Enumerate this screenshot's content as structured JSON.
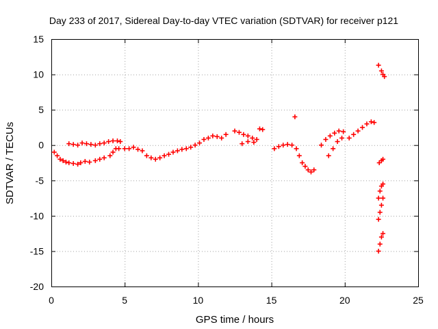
{
  "chart_data": {
    "type": "scatter",
    "title": "Day 233 of 2017, Sidereal Day-to-day VTEC variation (SDTVAR) for receiver p121",
    "xlabel": "GPS time / hours",
    "ylabel": "SDTVAR / TECUs",
    "xlim": [
      0,
      25
    ],
    "ylim": [
      -20,
      15
    ],
    "xticks": [
      "0",
      "5",
      "10",
      "15",
      "20",
      "25"
    ],
    "yticks": [
      "-20",
      "-15",
      "-10",
      "-5",
      "0",
      "5",
      "10",
      "15"
    ],
    "grid": true,
    "marker": "plus",
    "series_color": "#ff0000",
    "series": [
      {
        "name": "SDTVAR",
        "x": [
          0.2,
          0.4,
          0.6,
          0.8,
          1.0,
          1.2,
          1.5,
          1.8,
          2.0,
          2.3,
          2.6,
          3.0,
          3.3,
          3.6,
          4.0,
          4.2,
          4.4,
          4.6,
          1.2,
          1.5,
          1.8,
          2.1,
          2.4,
          2.7,
          3.0,
          3.3,
          3.6,
          3.9,
          4.2,
          4.5,
          4.7,
          5.0,
          5.3,
          5.6,
          5.9,
          6.2,
          6.5,
          6.8,
          7.1,
          7.4,
          7.7,
          8.0,
          8.3,
          8.6,
          8.9,
          9.2,
          9.5,
          9.8,
          10.1,
          10.4,
          10.7,
          11.0,
          11.3,
          11.6,
          11.9,
          12.5,
          12.8,
          13.1,
          13.4,
          13.7,
          14.0,
          14.2,
          14.4,
          13.0,
          13.4,
          13.8,
          15.2,
          15.5,
          15.8,
          16.1,
          16.4,
          16.7,
          16.9,
          17.1,
          17.3,
          17.5,
          17.7,
          17.9,
          16.6,
          18.4,
          18.7,
          19.0,
          19.3,
          19.6,
          19.9,
          18.9,
          19.2,
          19.5,
          19.8,
          20.3,
          20.6,
          20.9,
          21.2,
          21.5,
          21.8,
          22.0,
          22.3,
          22.5,
          22.6,
          22.7,
          22.35,
          22.5,
          22.6,
          22.3,
          22.4,
          22.5,
          22.6,
          22.3,
          22.4,
          22.5,
          22.6,
          22.3,
          22.4,
          22.5,
          22.6
        ],
        "y": [
          -1.0,
          -1.5,
          -2.0,
          -2.2,
          -2.4,
          -2.5,
          -2.6,
          -2.7,
          -2.5,
          -2.3,
          -2.4,
          -2.2,
          -2.0,
          -1.8,
          -1.5,
          -1.0,
          -0.5,
          -0.5,
          0.2,
          0.1,
          0.0,
          0.3,
          0.2,
          0.1,
          0.0,
          0.2,
          0.3,
          0.5,
          0.6,
          0.6,
          0.5,
          -0.5,
          -0.5,
          -0.3,
          -0.6,
          -0.8,
          -1.5,
          -1.8,
          -2.0,
          -1.8,
          -1.5,
          -1.3,
          -1.0,
          -0.8,
          -0.6,
          -0.5,
          -0.3,
          0.0,
          0.3,
          0.8,
          1.0,
          1.3,
          1.2,
          1.0,
          1.5,
          2.0,
          1.8,
          1.5,
          1.3,
          1.0,
          0.8,
          2.3,
          2.2,
          0.2,
          0.5,
          0.4,
          -0.5,
          -0.2,
          0.0,
          0.1,
          0.0,
          -0.5,
          -1.5,
          -2.5,
          -3.0,
          -3.5,
          -3.8,
          -3.5,
          4.0,
          0.0,
          0.8,
          1.3,
          1.7,
          2.0,
          1.9,
          -1.5,
          -0.5,
          0.5,
          1.0,
          1.0,
          1.5,
          2.0,
          2.5,
          3.0,
          3.3,
          3.2,
          11.3,
          10.5,
          10.0,
          9.7,
          -2.5,
          -2.2,
          -2.0,
          -7.5,
          -6.5,
          -5.8,
          -5.5,
          -10.5,
          -9.5,
          -8.5,
          -7.5,
          -15.0,
          -14.0,
          -13.0,
          -12.5
        ]
      }
    ]
  }
}
